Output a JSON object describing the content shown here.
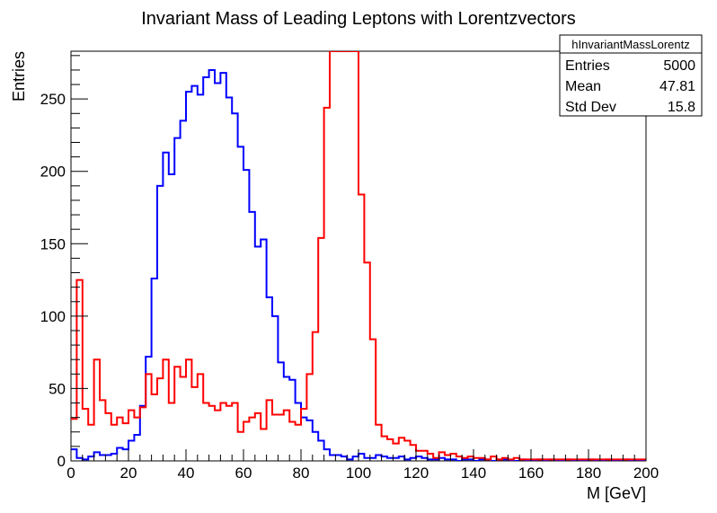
{
  "chart_data": {
    "type": "histogram",
    "title": "Invariant Mass of Leading Leptons with Lorentzvectors",
    "xlabel": "M [GeV]",
    "ylabel": "Entries",
    "xlim": [
      0,
      200
    ],
    "ylim": [
      0,
      283
    ],
    "bins": 100,
    "bin_width": 2,
    "x_ticks": [
      0,
      20,
      40,
      60,
      80,
      100,
      120,
      140,
      160,
      180,
      200
    ],
    "y_ticks": [
      0,
      50,
      100,
      150,
      200,
      250
    ],
    "grid": false,
    "stats_box": {
      "name": "hInvariantMassLorentz",
      "entries_label": "Entries",
      "entries": "5000",
      "mean_label": "Mean",
      "mean": "47.81",
      "stddev_label": "Std Dev",
      "stddev": "15.8",
      "placement": "top-right"
    },
    "series": [
      {
        "color": "#0000ff",
        "values": [
          8,
          2,
          1,
          3,
          6,
          4,
          4,
          5,
          9,
          8,
          14,
          18,
          38,
          72,
          126,
          190,
          213,
          198,
          223,
          235,
          255,
          259,
          253,
          265,
          270,
          261,
          268,
          251,
          240,
          217,
          201,
          172,
          148,
          153,
          113,
          100,
          68,
          58,
          56,
          40,
          30,
          28,
          20,
          14,
          8,
          4,
          4,
          3,
          1,
          3,
          5,
          2,
          2,
          4,
          3,
          2,
          2,
          3,
          1,
          2,
          3,
          2,
          1,
          1,
          2,
          1,
          1,
          0,
          1,
          1,
          0,
          1,
          1,
          0,
          1,
          1,
          0,
          0,
          1,
          0,
          0,
          1,
          0,
          1,
          0,
          0,
          1,
          0,
          0,
          0,
          1,
          0,
          0,
          1,
          0,
          0,
          1,
          0,
          0,
          0
        ]
      },
      {
        "color": "#ff0000",
        "values": [
          29,
          125,
          36,
          25,
          70,
          42,
          33,
          25,
          30,
          26,
          35,
          30,
          37,
          60,
          46,
          57,
          70,
          40,
          65,
          58,
          70,
          51,
          60,
          40,
          38,
          35,
          40,
          38,
          40,
          20,
          27,
          30,
          33,
          22,
          42,
          32,
          32,
          35,
          27,
          25,
          36,
          60,
          89,
          154,
          244,
          300,
          300,
          300,
          300,
          300,
          184,
          137,
          84,
          25,
          17,
          15,
          12,
          16,
          14,
          11,
          7,
          7,
          5,
          2,
          6,
          4,
          5,
          3,
          2,
          3,
          2,
          2,
          1,
          3,
          1,
          2,
          1,
          2,
          1,
          1,
          1,
          1,
          1,
          1,
          1,
          1,
          1,
          1,
          1,
          1,
          1,
          1,
          1,
          1,
          1,
          1,
          1,
          1,
          1,
          1
        ]
      }
    ]
  }
}
